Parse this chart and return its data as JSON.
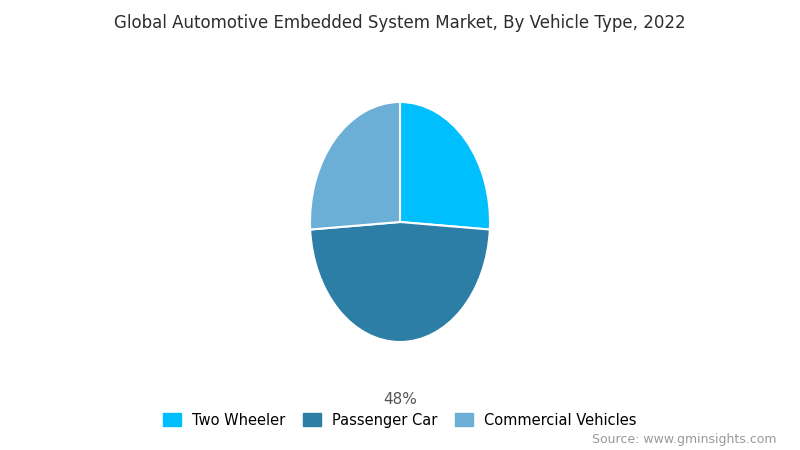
{
  "title": "Global Automotive Embedded System Market, By Vehicle Type, 2022",
  "segments": [
    "Two Wheeler",
    "Passenger Car",
    "Commercial Vehicles"
  ],
  "values": [
    26,
    48,
    26
  ],
  "colors": [
    "#00BFFF",
    "#2D7EA6",
    "#6BAED6"
  ],
  "label_text": "48%",
  "source_text": "Source: www.gminsights.com",
  "background_color": "#FFFFFF",
  "title_fontsize": 12,
  "legend_fontsize": 10.5,
  "source_fontsize": 9,
  "startangle": 90,
  "aspect_ratio": 0.75
}
